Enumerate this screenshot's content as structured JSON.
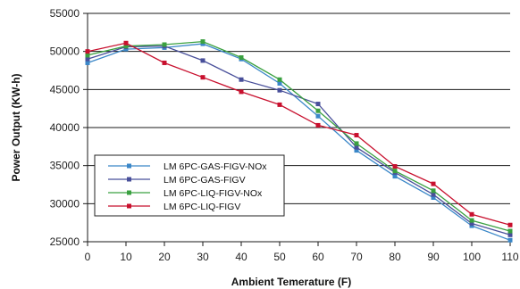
{
  "chart_data": {
    "type": "line",
    "xlabel": "Ambient Temerature (F)",
    "ylabel": "Power Output (KW-h)",
    "x": [
      0,
      10,
      20,
      30,
      40,
      50,
      60,
      70,
      80,
      90,
      100,
      110
    ],
    "xlim": [
      0,
      110
    ],
    "ylim": [
      25000,
      55000
    ],
    "x_ticks": [
      "0",
      "10",
      "20",
      "30",
      "40",
      "50",
      "60",
      "70",
      "80",
      "90",
      "100",
      "110"
    ],
    "y_ticks": [
      "25000",
      "30000",
      "35000",
      "40000",
      "45000",
      "50000",
      "55000"
    ],
    "grid": "horizontal",
    "legend_position": "lower-left",
    "series": [
      {
        "name": "LM 6PC-GAS-FIGV-NOx",
        "color": "#3a87c8",
        "values": [
          48500,
          50300,
          50500,
          51000,
          49000,
          45800,
          41500,
          37000,
          33600,
          30800,
          27100,
          25200
        ]
      },
      {
        "name": "LM 6PC-GAS-FIGV",
        "color": "#484f9a",
        "values": [
          49000,
          50600,
          50700,
          48800,
          46300,
          44900,
          43100,
          37400,
          34100,
          31200,
          27400,
          25900
        ]
      },
      {
        "name": "LM 6PC-LIQ-FIGV-NOx",
        "color": "#3aa040",
        "values": [
          49500,
          50700,
          50900,
          51300,
          49200,
          46300,
          42200,
          37900,
          34300,
          31700,
          27800,
          26400
        ]
      },
      {
        "name": "LM 6PC-LIQ-FIGV",
        "color": "#c8102e",
        "values": [
          50000,
          51100,
          48500,
          46600,
          44700,
          43000,
          40300,
          39000,
          34900,
          32600,
          28600,
          27200
        ]
      }
    ]
  }
}
